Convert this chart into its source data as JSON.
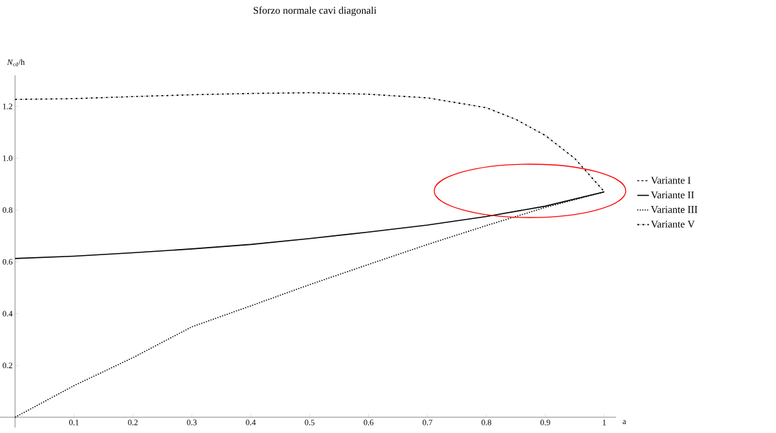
{
  "chart_data": {
    "type": "line",
    "title": "Sforzo normale cavi diagonali",
    "xlabel": "a",
    "ylabel": "*N*$_{cd}$/h",
    "x": [
      0,
      0.1,
      0.2,
      0.3,
      0.4,
      0.5,
      0.6,
      0.7,
      0.8,
      0.9,
      1
    ],
    "series": [
      {
        "name": "Variante I",
        "color": "#000000",
        "line_style": "dashed",
        "values": [
          null,
          null,
          null,
          null,
          null,
          null,
          null,
          null,
          null,
          null,
          null
        ]
      },
      {
        "name": "Variante II",
        "color": "#000000",
        "line_style": "solid",
        "values": [
          0.613,
          0.622,
          0.635,
          0.65,
          0.667,
          0.69,
          0.715,
          0.742,
          0.775,
          0.815,
          0.87
        ]
      },
      {
        "name": "Variante III",
        "color": "#000000",
        "line_style": "dotted",
        "values": [
          0,
          0.122,
          0.23,
          0.349,
          0.43,
          0.512,
          0.59,
          0.667,
          0.74,
          0.81,
          0.87
        ]
      },
      {
        "name": "Variante V",
        "color": "#000000",
        "line_style": "dashdot",
        "x": [
          0,
          0.1,
          0.2,
          0.3,
          0.4,
          0.5,
          0.6,
          0.7,
          0.8,
          0.85,
          0.9,
          0.95,
          1
        ],
        "values": [
          1.227,
          1.23,
          1.238,
          1.245,
          1.25,
          1.253,
          1.247,
          1.233,
          1.195,
          1.15,
          1.088,
          0.999,
          0.871
        ]
      }
    ],
    "xlim": [
      -0.03,
      1.02
    ],
    "ylim": [
      -0.04,
      1.32
    ],
    "xticks": [
      0.1,
      0.2,
      0.3,
      0.4,
      0.5,
      0.6,
      0.7,
      0.8,
      0.9,
      1
    ],
    "yticks": [
      0.2,
      0.4,
      0.6,
      0.8,
      {
        "value": 1,
        "label": "1.0"
      },
      1.2
    ],
    "grid": false,
    "legend": "right",
    "marker": "none"
  }
}
